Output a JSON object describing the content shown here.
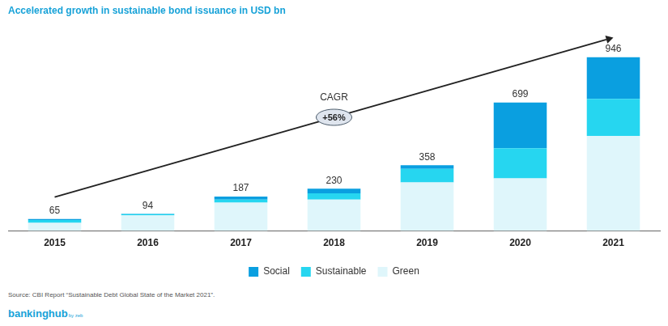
{
  "chart_data": {
    "type": "bar",
    "title": "Accelerated growth in sustainable bond issuance in USD bn",
    "categories": [
      "2015",
      "2016",
      "2017",
      "2018",
      "2019",
      "2020",
      "2021"
    ],
    "series": [
      {
        "name": "Social",
        "color": "#0a9fe0",
        "values": [
          5,
          2,
          16,
          25,
          20,
          249,
          227
        ]
      },
      {
        "name": "Sustainable",
        "color": "#26d6f0",
        "values": [
          15,
          7,
          17,
          34,
          73,
          163,
          201
        ]
      },
      {
        "name": "Green",
        "color": "#dff6fb",
        "values": [
          45,
          85,
          154,
          171,
          265,
          287,
          518
        ]
      }
    ],
    "totals": [
      65,
      94,
      187,
      230,
      358,
      699,
      946
    ],
    "stacked": true,
    "ylim": [
      0,
      1000
    ],
    "grid": false,
    "tick_labels": "x",
    "legend": "bottom",
    "annotations": [
      {
        "text": "CAGR"
      },
      {
        "text": "+56%"
      }
    ],
    "source": "Source: CBI Report “Sustainable Debt Global State of the Market 2021”.",
    "logo": "bankinghub",
    "logo_sub": "by zeb"
  }
}
